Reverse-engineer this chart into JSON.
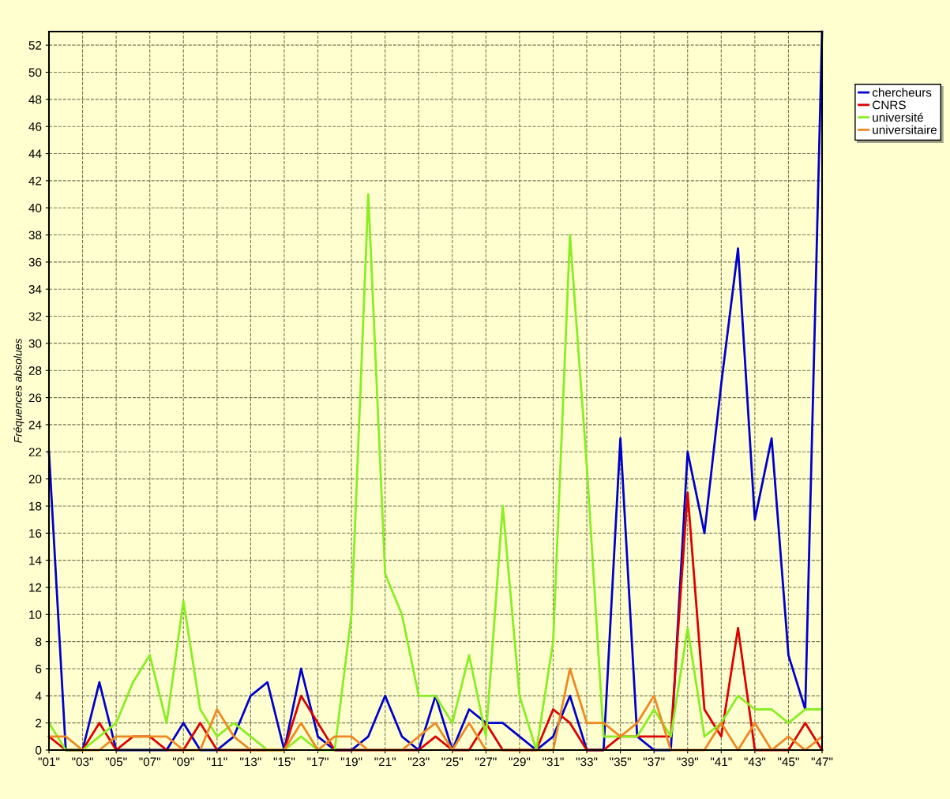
{
  "chart_data": {
    "type": "line",
    "ylabel": "Fréquences absolues",
    "categories": [
      "\"01\"",
      null,
      "\"03\"",
      null,
      "\"05\"",
      null,
      "\"07\"",
      null,
      "\"09\"",
      null,
      "\"11\"",
      null,
      "\"13\"",
      null,
      "\"15\"",
      null,
      "\"17\"",
      null,
      "\"19\"",
      null,
      "\"21\"",
      null,
      "\"23\"",
      null,
      "\"25\"",
      null,
      "\"27\"",
      null,
      "\"29\"",
      null,
      "\"31\"",
      null,
      "\"33\"",
      null,
      "\"35\"",
      null,
      "\"37\"",
      null,
      "\"39\"",
      null,
      "\"41\"",
      null,
      "\"43\"",
      null,
      "\"45\"",
      null,
      "\"47\""
    ],
    "series": [
      {
        "name": "chercheurs",
        "color": "#0000cc",
        "values": [
          22,
          0,
          0,
          5,
          0,
          0,
          0,
          0,
          2,
          0,
          0,
          1,
          4,
          5,
          0,
          6,
          1,
          0,
          0,
          1,
          4,
          1,
          0,
          4,
          0,
          3,
          2,
          2,
          1,
          0,
          1,
          4,
          0,
          0,
          23,
          1,
          0,
          0,
          22,
          16,
          27,
          37,
          17,
          23,
          7,
          3,
          53
        ]
      },
      {
        "name": "CNRS",
        "color": "#dd0000",
        "values": [
          1,
          0,
          0,
          2,
          0,
          1,
          1,
          0,
          0,
          2,
          0,
          0,
          0,
          0,
          0,
          4,
          2,
          0,
          0,
          0,
          0,
          0,
          0,
          1,
          0,
          0,
          2,
          0,
          0,
          0,
          3,
          2,
          0,
          0,
          1,
          1,
          1,
          1,
          19,
          3,
          1,
          9,
          0,
          0,
          0,
          2,
          0
        ]
      },
      {
        "name": "université",
        "color": "#88ee22",
        "values": [
          2,
          0,
          0,
          1,
          2,
          5,
          7,
          2,
          11,
          3,
          1,
          2,
          1,
          0,
          0,
          1,
          0,
          0,
          10,
          41,
          13,
          10,
          4,
          4,
          2,
          7,
          1,
          18,
          4,
          0,
          8,
          38,
          21,
          1,
          1,
          1,
          3,
          1,
          9,
          1,
          2,
          4,
          3,
          3,
          2,
          3,
          3
        ]
      },
      {
        "name": "universitaire",
        "color": "#ee8822",
        "values": [
          1,
          1,
          0,
          0,
          1,
          1,
          1,
          1,
          0,
          0,
          3,
          1,
          0,
          0,
          0,
          2,
          0,
          1,
          1,
          0,
          0,
          0,
          1,
          2,
          0,
          2,
          0,
          0,
          0,
          0,
          0,
          6,
          2,
          2,
          1,
          2,
          4,
          0,
          0,
          0,
          2,
          0,
          2,
          0,
          1,
          0,
          1
        ]
      }
    ],
    "ylim": [
      0,
      53
    ],
    "yticks": [
      0,
      2,
      4,
      6,
      8,
      10,
      12,
      14,
      16,
      18,
      20,
      22,
      24,
      26,
      28,
      30,
      32,
      34,
      36,
      38,
      40,
      42,
      44,
      46,
      48,
      50,
      52
    ],
    "grid": true,
    "legend": "top right",
    "marker": "none",
    "line_style": "solid"
  }
}
